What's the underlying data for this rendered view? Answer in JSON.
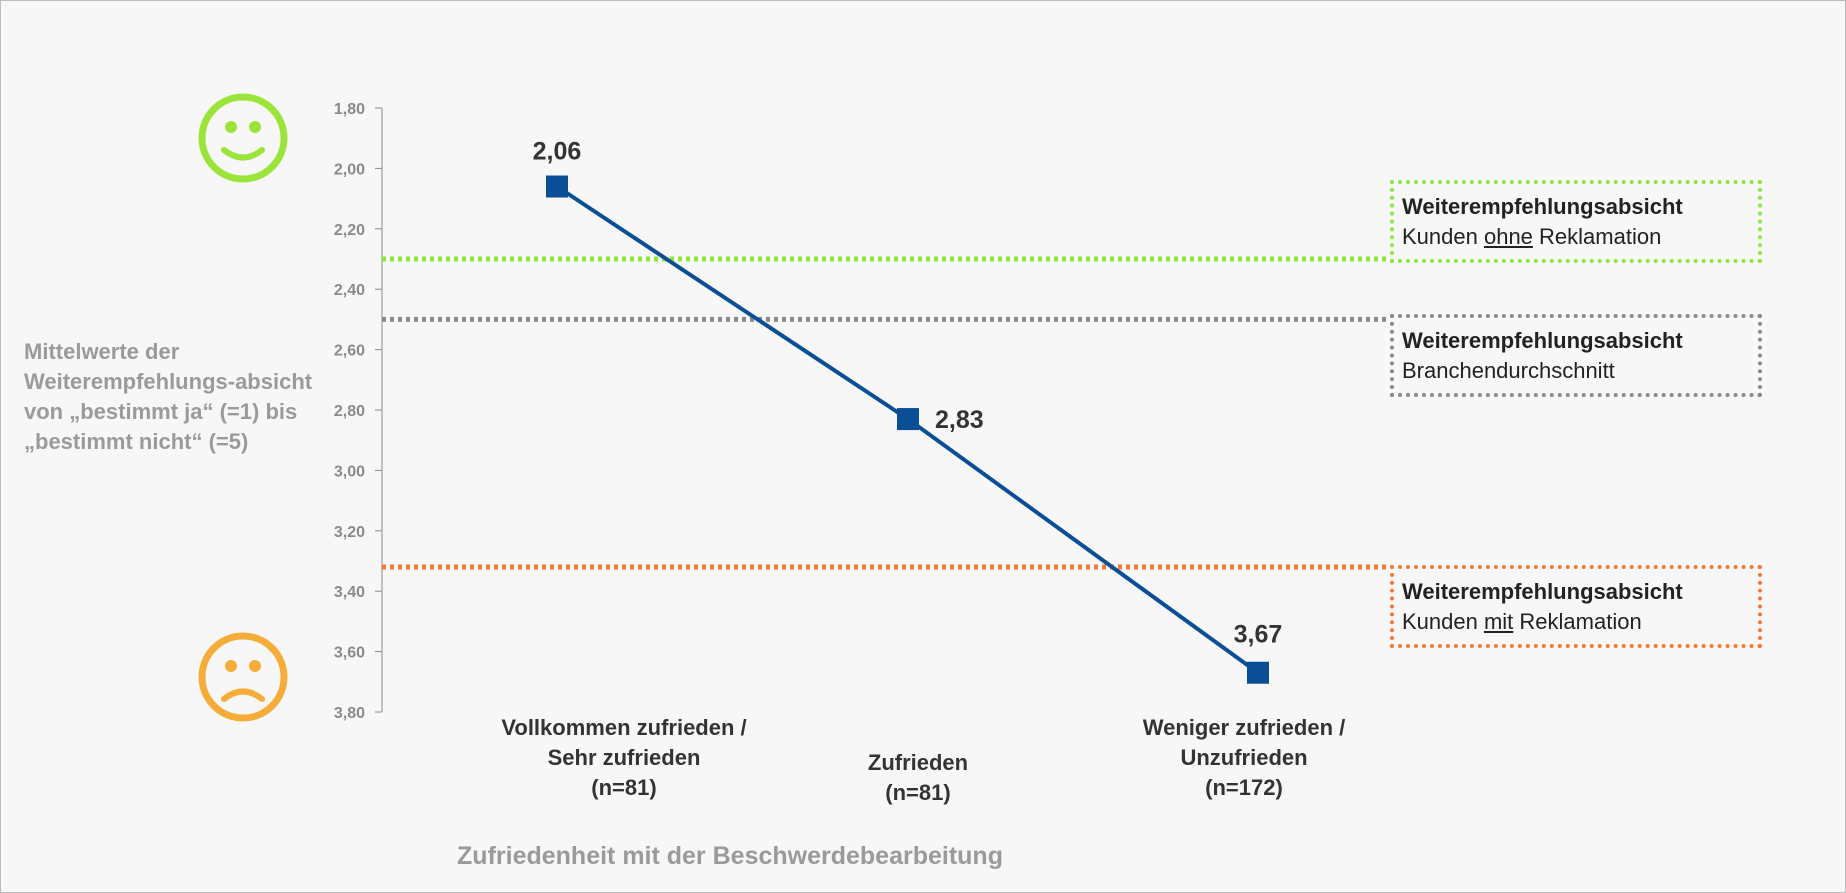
{
  "chart_data": {
    "type": "line",
    "ylabel": "Mittelwerte der Weiterempfehlungs-absicht von „bestimmt ja“ (=1) bis „bestimmt nicht“ (=5)",
    "xlabel": "Zufriedenheit mit der Beschwerdebearbeitung",
    "ylim": [
      1.8,
      3.8
    ],
    "y_inverted": true,
    "y_ticks": [
      "1,80",
      "2,00",
      "2,20",
      "2,40",
      "2,60",
      "2,80",
      "3,00",
      "3,20",
      "3,40",
      "3,60",
      "3,80"
    ],
    "categories": [
      [
        "Vollkommen zufrieden /",
        "Sehr zufrieden",
        "(n=81)"
      ],
      [
        "Zufrieden",
        "(n=81)"
      ],
      [
        "Weniger zufrieden /",
        "Unzufrieden",
        "(n=172)"
      ]
    ],
    "series": [
      {
        "values": [
          2.06,
          2.83,
          3.67
        ],
        "labels": [
          "2,06",
          "2,83",
          "3,67"
        ],
        "color": "#0a4f96"
      }
    ],
    "reference_lines": [
      {
        "value": 2.3,
        "color": "#8ee63c",
        "title": "Weiterempfehlungsabsicht",
        "pre": "Kunden ",
        "underlined": "ohne",
        "post": " Reklamation"
      },
      {
        "value": 2.5,
        "color": "#8a8a8a",
        "title": "Weiterempfehlungsabsicht",
        "pre": "Branchendurchschnitt",
        "underlined": "",
        "post": ""
      },
      {
        "value": 3.32,
        "color": "#f27b35",
        "title": "Weiterempfehlungsabsicht",
        "pre": "Kunden ",
        "underlined": "mit",
        "post": " Reklamation"
      }
    ],
    "grid": false,
    "icons": {
      "top": {
        "name": "happy-smiley-icon",
        "color": "#9be53a"
      },
      "bottom": {
        "name": "sad-smiley-icon",
        "color": "#f6ac38"
      }
    }
  }
}
